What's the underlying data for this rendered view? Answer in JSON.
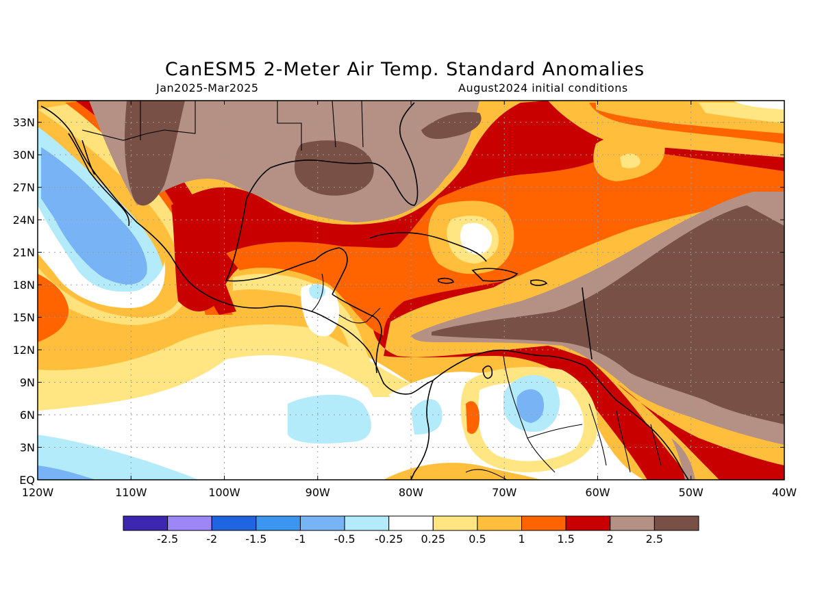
{
  "title": "CanESM5 2-Meter Air Temp. Standard Anomalies",
  "period": "Jan2025-Mar2025",
  "initial_conditions": "August2024 initial conditions",
  "map": {
    "lon_range": [
      -120,
      -40
    ],
    "lat_range": [
      0,
      35
    ],
    "lat_ticks": [
      "EQ",
      "3N",
      "6N",
      "9N",
      "12N",
      "15N",
      "18N",
      "21N",
      "24N",
      "27N",
      "30N",
      "33N"
    ],
    "lon_ticks": [
      "120W",
      "110W",
      "100W",
      "90W",
      "80W",
      "70W",
      "60W",
      "50W",
      "40W"
    ],
    "grid": true
  },
  "colorbar": {
    "colors": [
      "#3d26b0",
      "#9d86f5",
      "#1f64e0",
      "#3c96f0",
      "#78b4f5",
      "#b4ebfa",
      "#ffffff",
      "#ffe682",
      "#ffbe3c",
      "#ff6400",
      "#c80000",
      "#b49184",
      "#785046"
    ],
    "labels": [
      "-2.5",
      "-2",
      "-1.5",
      "-1",
      "-0.5",
      "-0.25",
      "0.25",
      "0.5",
      "1",
      "1.5",
      "2",
      "2.5"
    ]
  }
}
